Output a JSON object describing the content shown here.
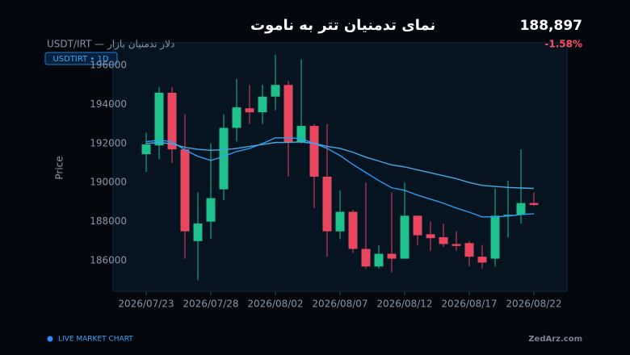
{
  "header": {
    "title": "نمای تدمنیان تتر به ناموت",
    "subtitle": "USDT/IRT — دلار تدمنیان بازار",
    "badge": "USDTIRT • 1D",
    "price": "188,897",
    "change": "-1.58%"
  },
  "footer": {
    "live": "LIVE MARKET CHART",
    "brand": "ZedArz.com"
  },
  "chart_data": {
    "type": "candlestick",
    "y_label": "Price",
    "categories": [
      "2026/07/23",
      null,
      null,
      null,
      null,
      "2026/07/28",
      null,
      null,
      null,
      null,
      "2026/08/02",
      null,
      null,
      null,
      null,
      "2026/08/07",
      null,
      null,
      null,
      null,
      "2026/08/12",
      null,
      null,
      null,
      null,
      "2026/08/17",
      null,
      null,
      null,
      null,
      "2026/08/22"
    ],
    "open": [
      191450,
      191900,
      194600,
      191700,
      187000,
      188000,
      189650,
      192800,
      193800,
      193600,
      194400,
      195000,
      192050,
      192900,
      190300,
      187500,
      188500,
      186600,
      185700,
      186350,
      186100,
      188300,
      187350,
      187200,
      186850,
      186900,
      186200,
      186100,
      188300,
      188350,
      188950
    ],
    "high": [
      192550,
      194900,
      194900,
      193500,
      189500,
      192000,
      193500,
      195300,
      195000,
      195000,
      196550,
      195200,
      196300,
      193000,
      193000,
      189600,
      188600,
      190000,
      186800,
      189500,
      190000,
      188300,
      188000,
      187900,
      187500,
      187000,
      186800,
      189700,
      190100,
      191700,
      189500
    ],
    "low": [
      190550,
      191200,
      191000,
      186100,
      185000,
      187100,
      189100,
      192100,
      193000,
      193000,
      193700,
      190300,
      192000,
      188700,
      186200,
      187100,
      186400,
      185600,
      185600,
      185400,
      186100,
      186800,
      186500,
      186700,
      186500,
      185700,
      185600,
      185700,
      187200,
      187900,
      188800
    ],
    "close": [
      191950,
      194600,
      191700,
      187500,
      187900,
      189200,
      192800,
      193850,
      193600,
      194400,
      195000,
      192050,
      192900,
      190300,
      187500,
      188500,
      186600,
      185700,
      186350,
      186100,
      188300,
      187300,
      187150,
      186850,
      186750,
      186200,
      185900,
      188300,
      188350,
      188950,
      188850
    ],
    "up_color": "#1fc08b",
    "down_color": "#e8475f",
    "lines": [
      {
        "color": "#2a9df4",
        "values": [
          192090,
          192170,
          192090,
          191670,
          191340,
          191130,
          191340,
          191590,
          191750,
          192000,
          192290,
          192290,
          192250,
          192000,
          191750,
          191380,
          190920,
          190510,
          190100,
          189730,
          189600,
          189350,
          189150,
          188940,
          188690,
          188480,
          188240,
          188240,
          188280,
          188360,
          188400
        ]
      },
      {
        "color": "#4aa8e8",
        "values": [
          192000,
          192050,
          191980,
          191800,
          191700,
          191650,
          191680,
          191750,
          191850,
          191950,
          192050,
          192060,
          192080,
          192000,
          191850,
          191750,
          191550,
          191300,
          191100,
          190900,
          190800,
          190650,
          190500,
          190350,
          190200,
          190000,
          189850,
          189800,
          189750,
          189720,
          189700
        ]
      }
    ],
    "ylim": [
      184430,
      197160
    ],
    "yticks": [
      186000,
      188000,
      190000,
      192000,
      194000,
      196000
    ]
  }
}
